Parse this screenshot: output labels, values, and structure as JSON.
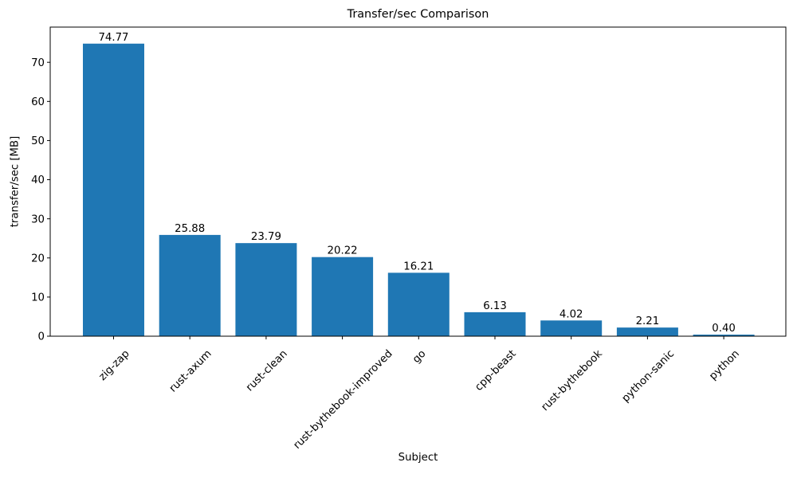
{
  "figure": {
    "background_color": "#ffffff"
  },
  "chart_data": {
    "type": "bar",
    "title": "Transfer/sec Comparison",
    "xlabel": "Subject",
    "ylabel": "transfer/sec [MB]",
    "categories": [
      "zig-zap",
      "rust-axum",
      "rust-clean",
      "rust-bythebook-improved",
      "go",
      "cpp-beast",
      "rust-bythebook",
      "python-sanic",
      "python"
    ],
    "values": [
      74.77,
      25.88,
      23.79,
      20.22,
      16.21,
      6.13,
      4.02,
      2.21,
      0.4
    ],
    "value_labels": [
      "74.77",
      "25.88",
      "23.79",
      "20.22",
      "16.21",
      "6.13",
      "4.02",
      "2.21",
      "0.40"
    ],
    "bar_color": "#1f77b4",
    "axis_color": "#000000",
    "text_color": "#000000",
    "ylim": [
      0,
      79
    ],
    "yticks": [
      0,
      10,
      20,
      30,
      40,
      50,
      60,
      70
    ],
    "grid": false,
    "legend": null,
    "x_tick_rotation_deg": 45
  }
}
